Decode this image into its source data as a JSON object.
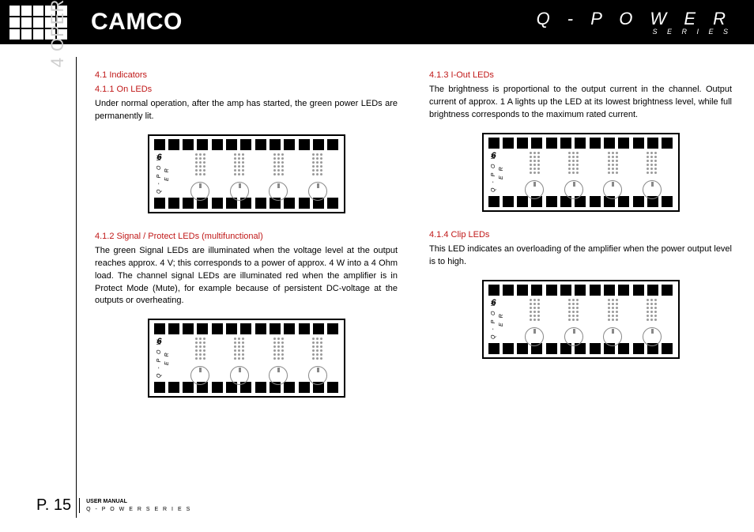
{
  "header": {
    "brand": "CAMCO",
    "series_title": "Q - P O W E R",
    "series_sub": "S E R I E S"
  },
  "section_label": "4 OPERATION",
  "left_col": {
    "h1": "4.1 Indicators",
    "h2": "4.1.1 On LEDs",
    "p1": "Under normal operation, after the amp has started, the green power LEDs are permanently lit.",
    "h3": "4.1.2 Signal / Protect LEDs (multifunctional)",
    "p2": "The green Signal LEDs are illuminated when the voltage level at the output reaches approx. 4 V; this corresponds to a power of approx. 4 W into a 4 Ohm load. The channel signal LEDs are illuminated red when the amplifier is in Protect Mode (Mute), for example because of persistent DC-voltage at the outputs or overheating."
  },
  "right_col": {
    "h1": "4.1.3 I-Out LEDs",
    "p1": "The brightness is proportional to the output current in the channel. Output current of approx. 1 A lights up the LED at its lowest brightness level, while full brightness corresponds to the maximum rated current.",
    "h2": "4.1.4 Clip LEDs",
    "p2": "This LED indicates an overloading of the amplifier when the power output level is to high."
  },
  "panel": {
    "side_label": "Q - P O W E R",
    "model_digit": "6",
    "strip_count": 13,
    "knobs": 4,
    "led_rows": 6
  },
  "footer": {
    "page": "P. 15",
    "line1": "USER MANUAL",
    "line2": "Q - P O W E R   S E R I E S"
  },
  "colors": {
    "heading_red": "#c01818",
    "section_grey": "#cfcfcf",
    "black": "#000000",
    "white": "#ffffff"
  }
}
